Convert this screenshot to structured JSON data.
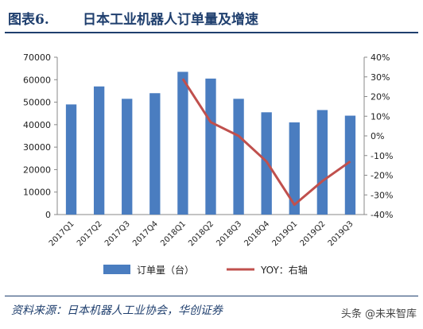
{
  "figure": {
    "label": "图表6.",
    "title": "日本工业机器人订单量及增速"
  },
  "source": "资料来源：日本机器人工业协会，华创证券",
  "watermark": "头条 @未来智库",
  "colors": {
    "bar": "#4a7dc0",
    "line": "#c0504d",
    "header": "#1f3f6e"
  },
  "chart_data": {
    "type": "bar",
    "categories": [
      "2017Q1",
      "2017Q2",
      "2017Q3",
      "2017Q4",
      "2018Q1",
      "2018Q2",
      "2018Q3",
      "2018Q4",
      "2019Q1",
      "2019Q2",
      "2019Q3"
    ],
    "series": [
      {
        "name": "订单量（台）",
        "type": "bar",
        "axis": "left",
        "values": [
          49000,
          57000,
          51500,
          54000,
          63500,
          60500,
          51500,
          45500,
          41000,
          46500,
          44000
        ]
      },
      {
        "name": "YOY：右轴",
        "type": "line",
        "axis": "right",
        "values": [
          null,
          null,
          null,
          null,
          29,
          7,
          0,
          -13,
          -35,
          -23,
          -13
        ]
      }
    ],
    "y_left": {
      "ylim": [
        0,
        70000
      ],
      "ticks": [
        "0",
        "10000",
        "20000",
        "30000",
        "40000",
        "50000",
        "60000",
        "70000"
      ]
    },
    "y_right": {
      "ylim": [
        -40,
        40
      ],
      "ticks": [
        "-40%",
        "-30%",
        "-20%",
        "-10%",
        "0%",
        "10%",
        "20%",
        "30%",
        "40%"
      ]
    },
    "grid": false,
    "legend": "bottom"
  }
}
